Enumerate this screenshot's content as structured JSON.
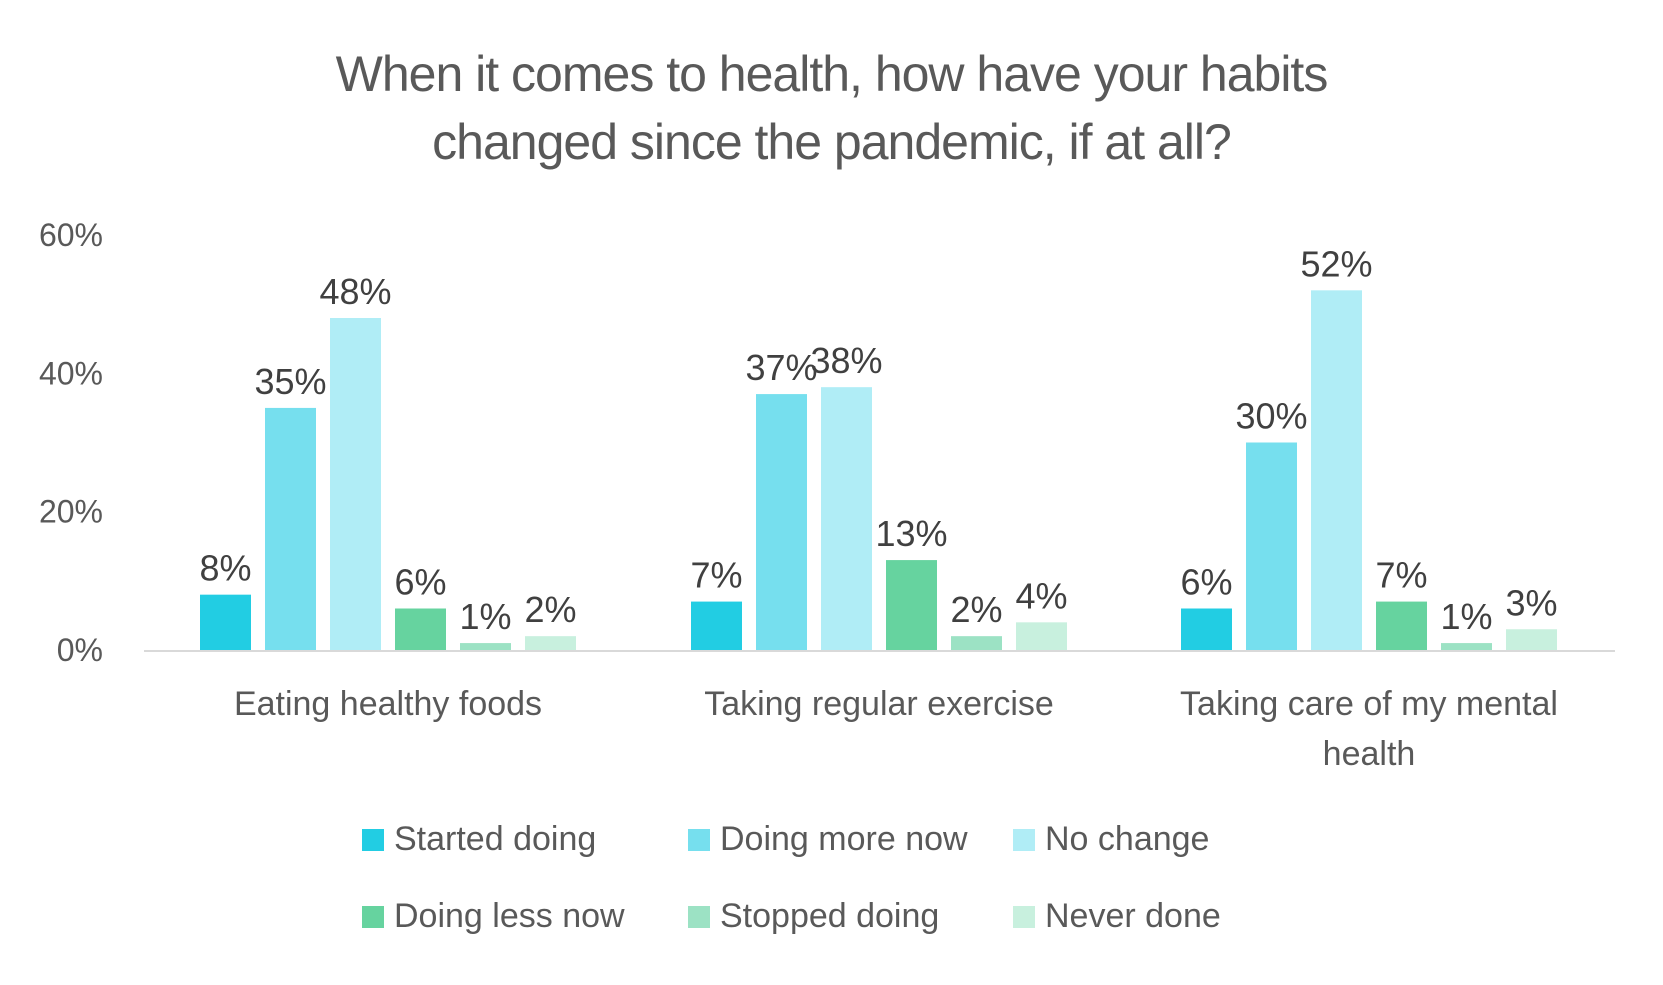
{
  "chart_data": {
    "type": "bar",
    "title": "When it comes to health, how have your habits changed since the pandemic, if at all?",
    "title_lines": [
      "When it comes to health, how have your habits",
      "changed since the pandemic, if at all?"
    ],
    "categories": [
      [
        "Eating healthy foods"
      ],
      [
        "Taking regular exercise"
      ],
      [
        "Taking care of my mental",
        "health"
      ]
    ],
    "series": [
      {
        "name": "Started doing",
        "color": "#22CDE3",
        "values": [
          8,
          7,
          6
        ]
      },
      {
        "name": "Doing more now",
        "color": "#76DFEE",
        "values": [
          35,
          37,
          30
        ]
      },
      {
        "name": "No change",
        "color": "#B0EDF6",
        "values": [
          48,
          38,
          52
        ]
      },
      {
        "name": "Doing less now",
        "color": "#66D39F",
        "values": [
          6,
          13,
          7
        ]
      },
      {
        "name": "Stopped doing",
        "color": "#9CE2C4",
        "values": [
          1,
          2,
          1
        ]
      },
      {
        "name": "Never done",
        "color": "#C8F0DE",
        "values": [
          2,
          4,
          3
        ]
      }
    ],
    "value_suffix": "%",
    "yticks": [
      "0%",
      "20%",
      "40%",
      "60%"
    ],
    "ytick_values": [
      0,
      20,
      40,
      60
    ],
    "ylim": [
      0,
      60
    ],
    "grid": false,
    "legend_position": "bottom",
    "xlabel": "",
    "ylabel": ""
  }
}
